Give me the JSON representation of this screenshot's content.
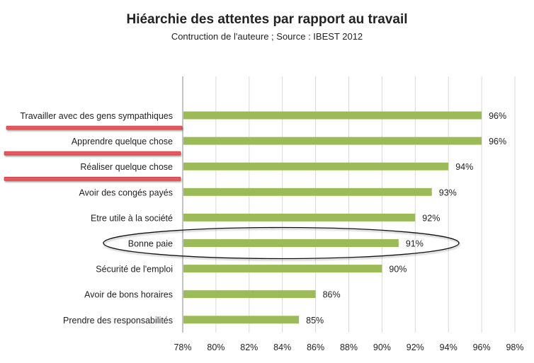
{
  "chart_data": {
    "type": "bar",
    "orientation": "horizontal",
    "title": "Hiéarchie des attentes par rapport au travail",
    "subtitle": "Contruction de l'auteure ; Source : IBEST 2012",
    "categories": [
      "Travailler avec des gens sympathiques",
      "Apprendre quelque chose",
      "Réaliser quelque chose",
      "Avoir des congés payés",
      "Etre utile à la société",
      "Bonne paie",
      "Sécurité de l'emploi",
      "Avoir de bons horaires",
      "Prendre des responsabilités"
    ],
    "values": [
      96,
      96,
      94,
      93,
      92,
      91,
      90,
      86,
      85
    ],
    "data_labels": [
      "96%",
      "96%",
      "94%",
      "93%",
      "92%",
      "91%",
      "90%",
      "86%",
      "85%"
    ],
    "xlim": [
      78,
      98
    ],
    "x_ticks": [
      "78%",
      "80%",
      "82%",
      "84%",
      "86%",
      "88%",
      "90%",
      "92%",
      "94%",
      "96%",
      "98%"
    ],
    "grid": true,
    "bar_color": "#9bbb59",
    "underlined_categories": [
      "Travailler avec des gens sympathiques",
      "Apprendre quelque chose",
      "Réaliser quelque chose"
    ],
    "underline_color": "#e8575b",
    "circled_category": "Bonne paie"
  }
}
